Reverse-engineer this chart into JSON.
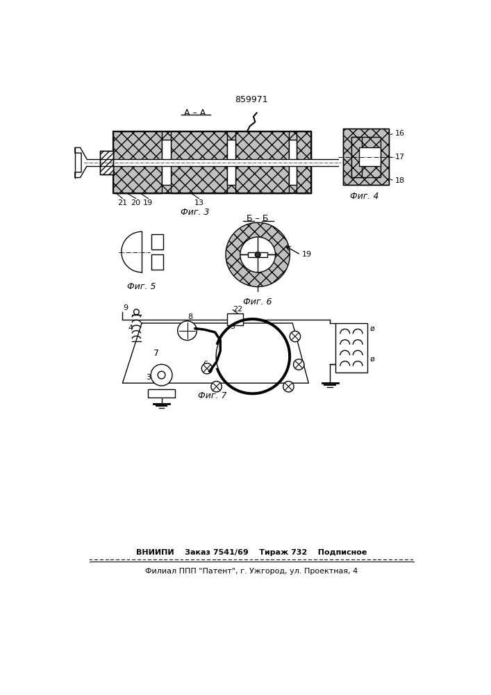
{
  "title": "859971",
  "footer_line1": "ВНИИПИ    Заказ 7541/69    Тираж 732    Подписное",
  "footer_line2": "Филиал ППП \"Патент\", г. Ужгород, ул. Проектная, 4",
  "bg_color": "#ffffff",
  "line_color": "#000000"
}
